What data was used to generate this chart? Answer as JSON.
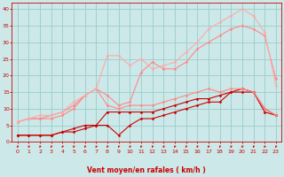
{
  "title": "",
  "xlabel": "Vent moyen/en rafales ( km/h )",
  "background_color": "#cce8e8",
  "grid_color": "#99cccc",
  "x_range": [
    -0.5,
    23.5
  ],
  "y_range": [
    0,
    42
  ],
  "yticks": [
    0,
    5,
    10,
    15,
    20,
    25,
    30,
    35,
    40
  ],
  "xticks": [
    0,
    1,
    2,
    3,
    4,
    5,
    6,
    7,
    8,
    9,
    10,
    11,
    12,
    13,
    14,
    15,
    16,
    17,
    18,
    19,
    20,
    21,
    22,
    23
  ],
  "series": [
    {
      "x": [
        0,
        1,
        2,
        3,
        4,
        5,
        6,
        7,
        8,
        9,
        10,
        11,
        12,
        13,
        14,
        15,
        16,
        17,
        18,
        19,
        20,
        21,
        22,
        23
      ],
      "y": [
        2,
        2,
        2,
        2,
        3,
        3,
        4,
        5,
        5,
        2,
        5,
        7,
        7,
        8,
        9,
        10,
        11,
        12,
        12,
        15,
        15,
        15,
        9,
        8
      ],
      "color": "#cc0000",
      "lw": 0.8,
      "marker": "D",
      "ms": 1.5
    },
    {
      "x": [
        0,
        1,
        2,
        3,
        4,
        5,
        6,
        7,
        8,
        9,
        10,
        11,
        12,
        13,
        14,
        15,
        16,
        17,
        18,
        19,
        20,
        21,
        22,
        23
      ],
      "y": [
        2,
        2,
        2,
        2,
        3,
        4,
        5,
        5,
        9,
        9,
        9,
        9,
        9,
        10,
        11,
        12,
        13,
        13,
        14,
        15,
        16,
        15,
        10,
        8
      ],
      "color": "#cc0000",
      "lw": 0.8,
      "marker": "D",
      "ms": 1.5
    },
    {
      "x": [
        0,
        1,
        2,
        3,
        4,
        5,
        6,
        7,
        8,
        9,
        10,
        11,
        12,
        13,
        14,
        15,
        16,
        17,
        18,
        19,
        20,
        21,
        22,
        23
      ],
      "y": [
        6,
        7,
        7,
        7,
        8,
        10,
        14,
        16,
        11,
        10,
        11,
        11,
        11,
        12,
        13,
        14,
        15,
        16,
        15,
        16,
        16,
        15,
        10,
        8
      ],
      "color": "#ff8888",
      "lw": 0.8,
      "marker": "D",
      "ms": 1.5
    },
    {
      "x": [
        0,
        1,
        2,
        3,
        4,
        5,
        6,
        7,
        8,
        9,
        10,
        11,
        12,
        13,
        14,
        15,
        16,
        17,
        18,
        19,
        20,
        21,
        22,
        23
      ],
      "y": [
        6,
        7,
        7,
        8,
        9,
        11,
        14,
        16,
        14,
        11,
        12,
        21,
        24,
        22,
        22,
        24,
        28,
        30,
        32,
        34,
        35,
        34,
        32,
        19
      ],
      "color": "#ff8888",
      "lw": 0.8,
      "marker": "D",
      "ms": 1.5
    },
    {
      "x": [
        0,
        1,
        2,
        3,
        4,
        5,
        6,
        7,
        8,
        9,
        10,
        11,
        12,
        13,
        14,
        15,
        16,
        17,
        18,
        19,
        20,
        21,
        22,
        23
      ],
      "y": [
        6,
        7,
        8,
        8,
        9,
        12,
        14,
        16,
        26,
        26,
        23,
        25,
        22,
        23,
        24,
        27,
        30,
        34,
        36,
        38,
        40,
        38,
        33,
        17
      ],
      "color": "#ffaaaa",
      "lw": 0.8,
      "marker": "D",
      "ms": 1.5
    }
  ],
  "arrow_color": "#cc0000",
  "xlabel_fontsize": 5.5,
  "tick_fontsize": 4.5,
  "xlabel_fontweight": "bold"
}
